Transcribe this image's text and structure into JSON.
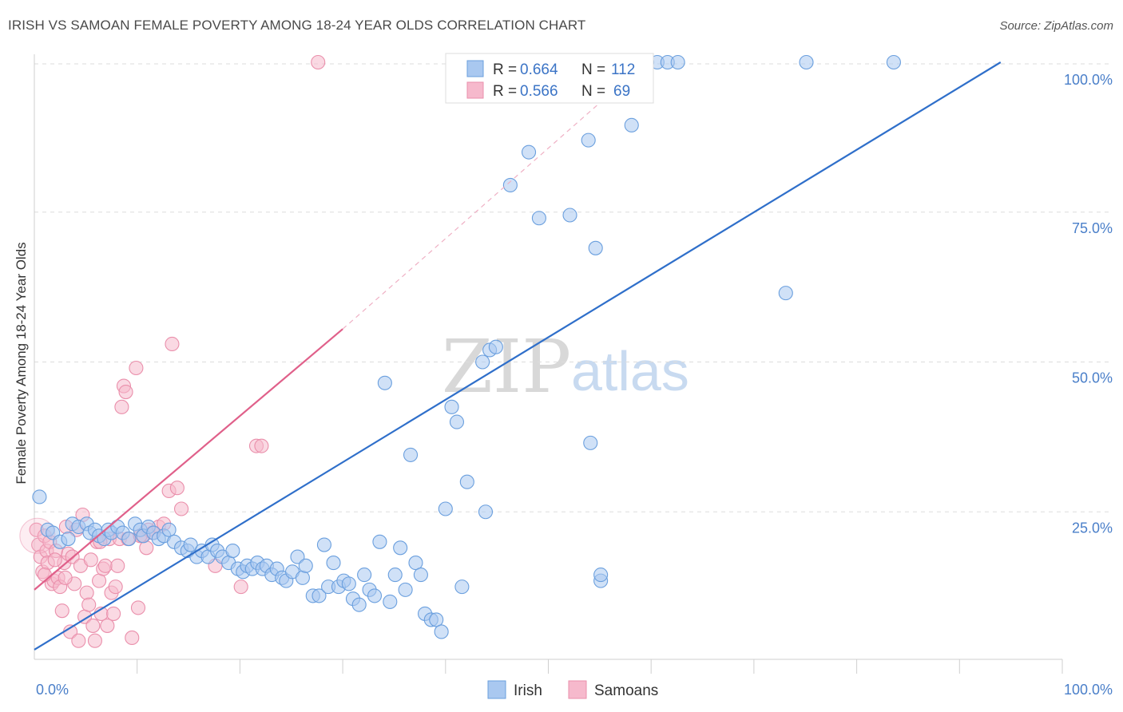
{
  "title": "IRISH VS SAMOAN FEMALE POVERTY AMONG 18-24 YEAR OLDS CORRELATION CHART",
  "source": "Source: ZipAtlas.com",
  "watermark": {
    "zip": "ZIP",
    "atlas": "atlas"
  },
  "legend": {
    "irish": {
      "r_label": "R =",
      "r_value": "0.664",
      "n_label": "N =",
      "n_value": "112"
    },
    "samoans": {
      "r_label": "R =",
      "r_value": "0.566",
      "n_label": "N =",
      "n_value": "69"
    }
  },
  "bottom_legend": {
    "irish": "Irish",
    "samoans": "Samoans"
  },
  "colors": {
    "irish_fill": "#a9c8f0",
    "irish_stroke": "#6a9fde",
    "irish_line": "#2f6fca",
    "samoan_fill": "#f6b9cc",
    "samoan_stroke": "#ea8fab",
    "samoan_line": "#e0608a",
    "grid": "#dddddd",
    "axis_text": "#4a7fc9"
  },
  "chart_data": {
    "type": "scatter",
    "xlabel": "",
    "ylabel": "Female Poverty Among 18-24 Year Olds",
    "xlim": [
      0,
      100
    ],
    "ylim": [
      0,
      100
    ],
    "x_tick_labels": [
      "0.0%",
      "100.0%"
    ],
    "y_tick_labels": [
      "25.0%",
      "50.0%",
      "75.0%",
      "100.0%"
    ],
    "y_ticks": [
      25,
      50,
      75,
      100
    ],
    "grid": "horizontal dashed",
    "legend_placement": "top-center",
    "series": [
      {
        "name": "Irish",
        "r": 0.664,
        "n": 112,
        "trend": {
          "x0": 0,
          "y0": 2,
          "x1": 94,
          "y1": 100
        },
        "points": [
          [
            0.5,
            27.5
          ],
          [
            1.3,
            22
          ],
          [
            1.8,
            21.5
          ],
          [
            2.5,
            20
          ],
          [
            3.3,
            20.5
          ],
          [
            3.7,
            23
          ],
          [
            4.3,
            22.5
          ],
          [
            5.1,
            23
          ],
          [
            5.4,
            21.5
          ],
          [
            5.9,
            22
          ],
          [
            6.3,
            21
          ],
          [
            6.8,
            20.5
          ],
          [
            7.2,
            22
          ],
          [
            7.5,
            21.5
          ],
          [
            8.1,
            22.5
          ],
          [
            8.6,
            21.5
          ],
          [
            9.2,
            20.5
          ],
          [
            9.8,
            23
          ],
          [
            10.3,
            22
          ],
          [
            10.6,
            21
          ],
          [
            11.1,
            22.5
          ],
          [
            11.6,
            21.5
          ],
          [
            12.1,
            20.5
          ],
          [
            12.6,
            21
          ],
          [
            13.1,
            22
          ],
          [
            13.6,
            20
          ],
          [
            14.3,
            19
          ],
          [
            14.9,
            18.5
          ],
          [
            15.2,
            19.5
          ],
          [
            15.8,
            17.5
          ],
          [
            16.3,
            18.5
          ],
          [
            16.9,
            17.5
          ],
          [
            17.3,
            19.5
          ],
          [
            17.8,
            18.5
          ],
          [
            18.3,
            17.5
          ],
          [
            18.9,
            16.5
          ],
          [
            19.3,
            18.5
          ],
          [
            19.8,
            15.5
          ],
          [
            20.3,
            15
          ],
          [
            20.7,
            16
          ],
          [
            21.2,
            15.5
          ],
          [
            21.7,
            16.5
          ],
          [
            22.2,
            15.5
          ],
          [
            22.6,
            16
          ],
          [
            23.1,
            14.5
          ],
          [
            23.6,
            15.5
          ],
          [
            24.1,
            14
          ],
          [
            24.5,
            13.5
          ],
          [
            25.1,
            15
          ],
          [
            25.6,
            17.5
          ],
          [
            26.1,
            14
          ],
          [
            26.4,
            16
          ],
          [
            27.1,
            11
          ],
          [
            27.7,
            11
          ],
          [
            28.2,
            19.5
          ],
          [
            28.6,
            12.5
          ],
          [
            29.1,
            16.5
          ],
          [
            29.6,
            12.5
          ],
          [
            30.1,
            13.5
          ],
          [
            30.6,
            13
          ],
          [
            31.0,
            10.5
          ],
          [
            31.6,
            9.5
          ],
          [
            32.1,
            14.5
          ],
          [
            32.6,
            12
          ],
          [
            33.1,
            11
          ],
          [
            33.6,
            20
          ],
          [
            34.1,
            46.5
          ],
          [
            34.6,
            10
          ],
          [
            35.1,
            14.5
          ],
          [
            35.6,
            19
          ],
          [
            36.1,
            12
          ],
          [
            36.6,
            34.5
          ],
          [
            37.1,
            16.5
          ],
          [
            37.6,
            14.5
          ],
          [
            38.0,
            8
          ],
          [
            38.6,
            7
          ],
          [
            39.1,
            7
          ],
          [
            39.6,
            5
          ],
          [
            40.0,
            25.5
          ],
          [
            40.6,
            42.5
          ],
          [
            41.1,
            40
          ],
          [
            41.6,
            12.5
          ],
          [
            42.1,
            30
          ],
          [
            43.6,
            50
          ],
          [
            44.3,
            52
          ],
          [
            44.9,
            52.5
          ],
          [
            43.9,
            25
          ],
          [
            46.3,
            79.5
          ],
          [
            48.1,
            85
          ],
          [
            49.1,
            74
          ],
          [
            52.1,
            74.5
          ],
          [
            53.9,
            87
          ],
          [
            54.6,
            69
          ],
          [
            54.1,
            36.5
          ],
          [
            55.1,
            13.5
          ],
          [
            55.1,
            14.5
          ],
          [
            58.1,
            89.5
          ],
          [
            58.6,
            100
          ],
          [
            59.6,
            100
          ],
          [
            60.6,
            100
          ],
          [
            61.6,
            100
          ],
          [
            62.6,
            100
          ],
          [
            53.1,
            100
          ],
          [
            56.1,
            100
          ],
          [
            75.1,
            100
          ],
          [
            83.6,
            100
          ],
          [
            73.1,
            61.5
          ],
          [
            50.1,
            100
          ],
          [
            51.1,
            100
          ],
          [
            52.6,
            100
          ],
          [
            45.1,
            100
          ],
          [
            47.1,
            100
          ]
        ]
      },
      {
        "name": "Samoans",
        "r": 0.566,
        "n": 69,
        "trend": {
          "x0": 0,
          "y0": 12,
          "x1": 30,
          "y1": 55.5
        },
        "trend_extension": {
          "x0": 30,
          "y0": 55.5,
          "x1": 59.5,
          "y1": 100
        },
        "points": [
          [
            0.2,
            22
          ],
          [
            0.4,
            19.5
          ],
          [
            0.6,
            17.5
          ],
          [
            0.8,
            15
          ],
          [
            1.0,
            21
          ],
          [
            1.2,
            18.5
          ],
          [
            1.3,
            16.5
          ],
          [
            1.5,
            20
          ],
          [
            1.7,
            13
          ],
          [
            1.9,
            13.5
          ],
          [
            2.1,
            18.5
          ],
          [
            2.3,
            14
          ],
          [
            2.5,
            12.5
          ],
          [
            2.7,
            8.5
          ],
          [
            2.9,
            16.5
          ],
          [
            3.1,
            22.5
          ],
          [
            3.3,
            18
          ],
          [
            3.5,
            5
          ],
          [
            3.7,
            17.5
          ],
          [
            3.9,
            13
          ],
          [
            4.1,
            22
          ],
          [
            4.3,
            3.5
          ],
          [
            4.5,
            16
          ],
          [
            4.7,
            24.5
          ],
          [
            4.9,
            7.5
          ],
          [
            5.1,
            11.5
          ],
          [
            5.3,
            9.5
          ],
          [
            5.5,
            17
          ],
          [
            5.7,
            6
          ],
          [
            5.9,
            3.5
          ],
          [
            6.1,
            20
          ],
          [
            6.3,
            13.5
          ],
          [
            6.5,
            8
          ],
          [
            6.7,
            15.5
          ],
          [
            6.9,
            16
          ],
          [
            7.1,
            6
          ],
          [
            7.3,
            20.5
          ],
          [
            7.5,
            11.5
          ],
          [
            7.7,
            8
          ],
          [
            7.9,
            12.5
          ],
          [
            8.1,
            16
          ],
          [
            8.3,
            20.5
          ],
          [
            8.5,
            42.5
          ],
          [
            8.7,
            46
          ],
          [
            8.9,
            45
          ],
          [
            9.1,
            20.5
          ],
          [
            9.5,
            4
          ],
          [
            9.9,
            49
          ],
          [
            10.1,
            9
          ],
          [
            10.5,
            21
          ],
          [
            10.9,
            19
          ],
          [
            11.1,
            22
          ],
          [
            11.5,
            21.5
          ],
          [
            12.1,
            22.5
          ],
          [
            12.6,
            23
          ],
          [
            13.1,
            28.5
          ],
          [
            13.4,
            53
          ],
          [
            13.9,
            29
          ],
          [
            14.3,
            25.5
          ],
          [
            10.3,
            21
          ],
          [
            17.6,
            16
          ],
          [
            20.1,
            12.5
          ],
          [
            21.6,
            36
          ],
          [
            22.1,
            36
          ],
          [
            27.6,
            100
          ],
          [
            1.0,
            14.5
          ],
          [
            2.0,
            17
          ],
          [
            3.0,
            14
          ],
          [
            6.4,
            20
          ]
        ]
      }
    ]
  }
}
